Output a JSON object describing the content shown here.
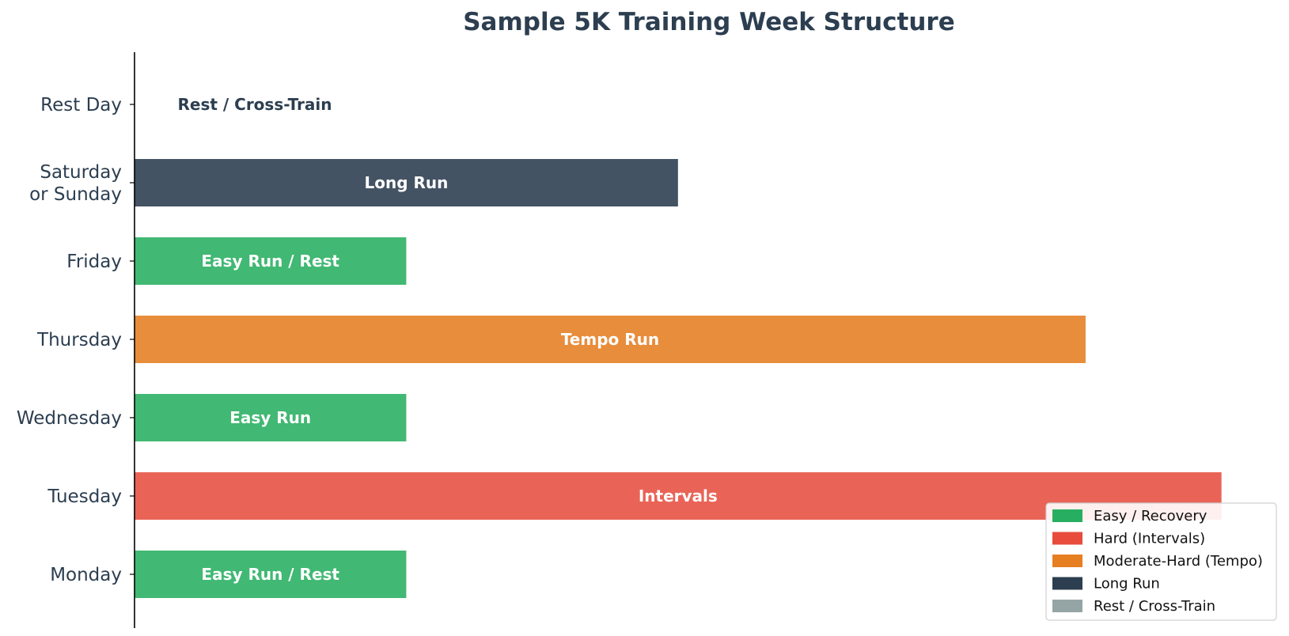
{
  "chart_data": {
    "type": "bar",
    "orientation": "horizontal",
    "title": "Sample 5K Training Week Structure",
    "xlabel": "",
    "ylabel": "",
    "grid": false,
    "legend_position": "bottom-right",
    "xlim": [
      0,
      8.2
    ],
    "categories": [
      {
        "name": "Monday",
        "lines": [
          "Monday"
        ],
        "value": 2.0,
        "label": "Easy Run / Rest",
        "group": "easy"
      },
      {
        "name": "Tuesday",
        "lines": [
          "Tuesday"
        ],
        "value": 8.0,
        "label": "Intervals",
        "group": "hard"
      },
      {
        "name": "Wednesday",
        "lines": [
          "Wednesday"
        ],
        "value": 2.0,
        "label": "Easy Run",
        "group": "easy"
      },
      {
        "name": "Thursday",
        "lines": [
          "Thursday"
        ],
        "value": 7.0,
        "label": "Tempo Run",
        "group": "tempo"
      },
      {
        "name": "Friday",
        "lines": [
          "Friday"
        ],
        "value": 2.0,
        "label": "Easy Run / Rest",
        "group": "easy"
      },
      {
        "name": "Saturday or Sunday",
        "lines": [
          "Saturday",
          "or Sunday"
        ],
        "value": 4.0,
        "label": "Long Run",
        "group": "long"
      },
      {
        "name": "Rest Day",
        "lines": [
          "Rest Day"
        ],
        "value": 0,
        "label": "Rest / Cross-Train",
        "group": "rest"
      }
    ],
    "legend": [
      {
        "key": "easy",
        "label": "Easy / Recovery",
        "color": "#27ae60"
      },
      {
        "key": "hard",
        "label": "Hard (Intervals)",
        "color": "#e74c3c"
      },
      {
        "key": "tempo",
        "label": "Moderate-Hard (Tempo)",
        "color": "#e67e22"
      },
      {
        "key": "long",
        "label": "Long Run",
        "color": "#2c3e50"
      },
      {
        "key": "rest",
        "label": "Rest / Cross-Train",
        "color": "#95a5a6"
      }
    ],
    "bar_colors": {
      "easy": "#41b873",
      "hard": "#e96457",
      "tempo": "#e88d3b",
      "long": "#445363",
      "rest": "#95a5a6"
    },
    "text_color": "#2c3e50"
  }
}
